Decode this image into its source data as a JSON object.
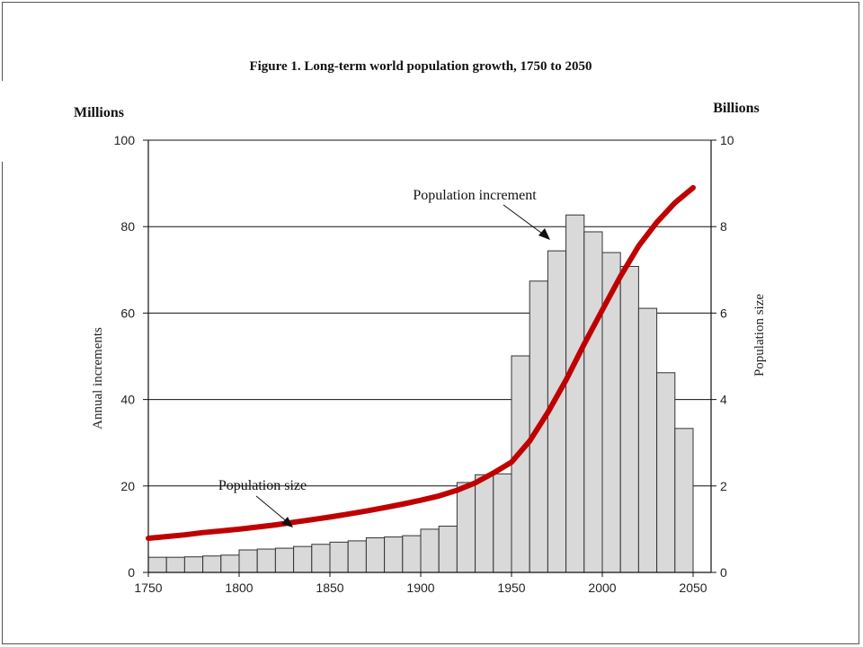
{
  "chart_data": {
    "type": "bar",
    "title": "Figure 1.  Long-term world population growth, 1750 to 2050",
    "left_unit": "Millions",
    "right_unit": "Billions",
    "ylabel": "Annual increments",
    "y2label": "Population size",
    "xlim": [
      1750,
      2050
    ],
    "ylim": [
      0,
      100
    ],
    "y2lim": [
      0,
      10
    ],
    "x_ticks": [
      1750,
      1800,
      1850,
      1900,
      1950,
      2000,
      2050
    ],
    "y_ticks": [
      0,
      20,
      40,
      60,
      80,
      100
    ],
    "y2_ticks": [
      0,
      2,
      4,
      6,
      8,
      10
    ],
    "grid": true,
    "bar_width_years": 10,
    "series": [
      {
        "name": "Population increment",
        "type": "bar",
        "axis": "left",
        "x_start": [
          1750,
          1760,
          1770,
          1780,
          1790,
          1800,
          1810,
          1820,
          1830,
          1840,
          1850,
          1860,
          1870,
          1880,
          1890,
          1900,
          1910,
          1920,
          1930,
          1940,
          1950,
          1960,
          1970,
          1980,
          1990,
          2000,
          2010,
          2020,
          2030,
          2040
        ],
        "values": [
          3.5,
          3.5,
          3.6,
          3.8,
          4.0,
          5.2,
          5.4,
          5.6,
          6.0,
          6.5,
          7.0,
          7.3,
          8.0,
          8.2,
          8.5,
          10.0,
          10.7,
          20.8,
          22.6,
          22.8,
          50.1,
          67.4,
          74.4,
          82.7,
          78.8,
          74.0,
          70.8,
          61.1,
          46.2,
          33.3
        ],
        "color": "#d9d9d9"
      },
      {
        "name": "Population size",
        "type": "line",
        "axis": "right",
        "x": [
          1750,
          1760,
          1770,
          1780,
          1790,
          1800,
          1810,
          1820,
          1830,
          1840,
          1850,
          1860,
          1870,
          1880,
          1890,
          1900,
          1910,
          1920,
          1930,
          1940,
          1950,
          1960,
          1970,
          1980,
          1990,
          2000,
          2010,
          2020,
          2030,
          2040,
          2050
        ],
        "values": [
          0.79,
          0.83,
          0.87,
          0.92,
          0.96,
          1.0,
          1.05,
          1.1,
          1.16,
          1.22,
          1.28,
          1.35,
          1.42,
          1.5,
          1.58,
          1.67,
          1.77,
          1.9,
          2.07,
          2.3,
          2.55,
          3.04,
          3.7,
          4.45,
          5.28,
          6.07,
          6.85,
          7.55,
          8.1,
          8.55,
          8.9
        ],
        "color": "#c00000"
      }
    ],
    "annotations": [
      {
        "text": "Population increment",
        "target": "bar 1970"
      },
      {
        "text": "Population size",
        "target": "line 1820"
      }
    ]
  }
}
